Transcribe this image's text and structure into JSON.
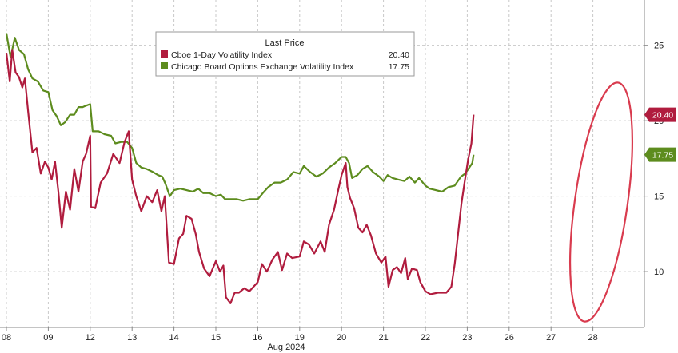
{
  "chart_data": {
    "type": "line",
    "legend": {
      "title": "Last Price",
      "placement": "top-center"
    },
    "x_categories": [
      "08",
      "09",
      "12",
      "13",
      "14",
      "15",
      "16",
      "19",
      "20",
      "21",
      "22",
      "23",
      "26",
      "27",
      "28"
    ],
    "x_axis_month": "Aug 2024",
    "y_axis": {
      "side": "right",
      "ticks": [
        10,
        15,
        20,
        25
      ],
      "ylim": [
        6.3,
        28.0
      ],
      "grid": true
    },
    "series": [
      {
        "name": "Cboe 1-Day Volatility Index",
        "last_value": "20.40",
        "color": "#b01c3e",
        "points": [
          [
            0.0,
            24.5
          ],
          [
            0.08,
            22.6
          ],
          [
            0.14,
            24.7
          ],
          [
            0.22,
            23.2
          ],
          [
            0.3,
            22.9
          ],
          [
            0.38,
            22.2
          ],
          [
            0.44,
            22.8
          ],
          [
            0.52,
            20.6
          ],
          [
            0.62,
            17.9
          ],
          [
            0.72,
            18.2
          ],
          [
            0.82,
            16.5
          ],
          [
            0.92,
            17.3
          ],
          [
            1.0,
            16.9
          ],
          [
            1.08,
            16.1
          ],
          [
            1.16,
            17.3
          ],
          [
            1.24,
            15.3
          ],
          [
            1.32,
            12.9
          ],
          [
            1.42,
            15.3
          ],
          [
            1.52,
            14.1
          ],
          [
            1.62,
            16.8
          ],
          [
            1.72,
            15.3
          ],
          [
            1.82,
            17.3
          ],
          [
            1.9,
            17.8
          ],
          [
            1.95,
            18.4
          ],
          [
            2.0,
            19.0
          ],
          [
            2.02,
            14.3
          ],
          [
            2.12,
            14.2
          ],
          [
            2.25,
            15.9
          ],
          [
            2.4,
            16.5
          ],
          [
            2.55,
            17.8
          ],
          [
            2.7,
            17.2
          ],
          [
            2.82,
            18.6
          ],
          [
            2.92,
            19.3
          ],
          [
            3.0,
            16.1
          ],
          [
            3.1,
            15.0
          ],
          [
            3.22,
            14.0
          ],
          [
            3.35,
            15.0
          ],
          [
            3.48,
            14.6
          ],
          [
            3.6,
            15.4
          ],
          [
            3.7,
            14.0
          ],
          [
            3.78,
            15.0
          ],
          [
            3.88,
            10.6
          ],
          [
            4.0,
            10.5
          ],
          [
            4.12,
            12.2
          ],
          [
            4.22,
            12.5
          ],
          [
            4.3,
            13.7
          ],
          [
            4.42,
            13.5
          ],
          [
            4.52,
            12.5
          ],
          [
            4.6,
            11.3
          ],
          [
            4.72,
            10.2
          ],
          [
            4.85,
            9.7
          ],
          [
            5.0,
            10.7
          ],
          [
            5.1,
            10.0
          ],
          [
            5.18,
            10.4
          ],
          [
            5.24,
            8.3
          ],
          [
            5.35,
            7.9
          ],
          [
            5.45,
            8.6
          ],
          [
            5.55,
            8.6
          ],
          [
            5.68,
            8.9
          ],
          [
            5.8,
            8.7
          ],
          [
            6.0,
            9.3
          ],
          [
            6.1,
            10.5
          ],
          [
            6.22,
            10.0
          ],
          [
            6.35,
            10.8
          ],
          [
            6.48,
            11.3
          ],
          [
            6.58,
            10.1
          ],
          [
            6.7,
            11.2
          ],
          [
            6.82,
            10.9
          ],
          [
            7.0,
            11.0
          ],
          [
            7.1,
            12.0
          ],
          [
            7.22,
            11.8
          ],
          [
            7.35,
            11.2
          ],
          [
            7.5,
            12.0
          ],
          [
            7.6,
            11.3
          ],
          [
            7.7,
            13.1
          ],
          [
            7.82,
            14.1
          ],
          [
            7.92,
            15.4
          ],
          [
            8.0,
            16.4
          ],
          [
            8.1,
            17.2
          ],
          [
            8.14,
            15.6
          ],
          [
            8.2,
            14.9
          ],
          [
            8.3,
            14.2
          ],
          [
            8.4,
            12.9
          ],
          [
            8.5,
            12.6
          ],
          [
            8.6,
            13.1
          ],
          [
            8.7,
            12.4
          ],
          [
            8.82,
            11.2
          ],
          [
            8.95,
            10.6
          ],
          [
            9.05,
            11.0
          ],
          [
            9.12,
            9.0
          ],
          [
            9.22,
            10.1
          ],
          [
            9.32,
            10.3
          ],
          [
            9.42,
            9.9
          ],
          [
            9.52,
            10.9
          ],
          [
            9.58,
            9.5
          ],
          [
            9.68,
            10.2
          ],
          [
            9.8,
            10.1
          ],
          [
            9.88,
            9.3
          ],
          [
            10.0,
            8.7
          ],
          [
            10.12,
            8.5
          ],
          [
            10.3,
            8.6
          ],
          [
            10.5,
            8.6
          ],
          [
            10.62,
            9.0
          ],
          [
            10.7,
            10.5
          ],
          [
            10.78,
            12.5
          ],
          [
            10.86,
            14.5
          ],
          [
            10.94,
            16.0
          ],
          [
            11.02,
            17.4
          ],
          [
            11.1,
            18.5
          ],
          [
            11.15,
            20.4
          ]
        ]
      },
      {
        "name": "Chicago Board Options Exchange Volatility Index",
        "last_value": "17.75",
        "color": "#5d8c1e",
        "points": [
          [
            0.0,
            25.8
          ],
          [
            0.1,
            24.2
          ],
          [
            0.2,
            25.5
          ],
          [
            0.3,
            24.7
          ],
          [
            0.42,
            24.4
          ],
          [
            0.52,
            23.4
          ],
          [
            0.62,
            22.8
          ],
          [
            0.75,
            22.6
          ],
          [
            0.88,
            22.0
          ],
          [
            1.0,
            21.9
          ],
          [
            1.1,
            20.7
          ],
          [
            1.2,
            20.3
          ],
          [
            1.3,
            19.7
          ],
          [
            1.4,
            19.9
          ],
          [
            1.52,
            20.4
          ],
          [
            1.62,
            20.4
          ],
          [
            1.72,
            20.9
          ],
          [
            1.82,
            20.9
          ],
          [
            1.9,
            21.0
          ],
          [
            2.0,
            21.1
          ],
          [
            2.06,
            19.3
          ],
          [
            2.2,
            19.3
          ],
          [
            2.35,
            19.1
          ],
          [
            2.5,
            19.0
          ],
          [
            2.6,
            18.5
          ],
          [
            2.75,
            18.6
          ],
          [
            2.88,
            18.6
          ],
          [
            3.0,
            18.2
          ],
          [
            3.1,
            17.2
          ],
          [
            3.22,
            16.9
          ],
          [
            3.35,
            16.8
          ],
          [
            3.5,
            16.6
          ],
          [
            3.62,
            16.4
          ],
          [
            3.72,
            16.3
          ],
          [
            3.8,
            15.8
          ],
          [
            3.9,
            15.0
          ],
          [
            4.0,
            15.4
          ],
          [
            4.15,
            15.5
          ],
          [
            4.3,
            15.4
          ],
          [
            4.45,
            15.3
          ],
          [
            4.58,
            15.5
          ],
          [
            4.7,
            15.2
          ],
          [
            4.85,
            15.2
          ],
          [
            5.0,
            15.0
          ],
          [
            5.12,
            15.1
          ],
          [
            5.22,
            14.8
          ],
          [
            5.35,
            14.8
          ],
          [
            5.5,
            14.8
          ],
          [
            5.65,
            14.7
          ],
          [
            5.8,
            14.8
          ],
          [
            6.0,
            14.8
          ],
          [
            6.12,
            15.2
          ],
          [
            6.25,
            15.6
          ],
          [
            6.4,
            15.9
          ],
          [
            6.55,
            15.9
          ],
          [
            6.7,
            16.1
          ],
          [
            6.85,
            16.6
          ],
          [
            7.0,
            16.5
          ],
          [
            7.1,
            17.0
          ],
          [
            7.25,
            16.6
          ],
          [
            7.4,
            16.3
          ],
          [
            7.55,
            16.5
          ],
          [
            7.7,
            16.9
          ],
          [
            7.85,
            17.2
          ],
          [
            8.0,
            17.6
          ],
          [
            8.1,
            17.6
          ],
          [
            8.18,
            17.2
          ],
          [
            8.25,
            16.2
          ],
          [
            8.38,
            16.4
          ],
          [
            8.5,
            16.8
          ],
          [
            8.62,
            17.0
          ],
          [
            8.75,
            16.6
          ],
          [
            8.9,
            16.3
          ],
          [
            9.0,
            16.0
          ],
          [
            9.1,
            16.4
          ],
          [
            9.22,
            16.2
          ],
          [
            9.35,
            16.1
          ],
          [
            9.5,
            16.0
          ],
          [
            9.62,
            16.3
          ],
          [
            9.75,
            15.9
          ],
          [
            9.85,
            16.2
          ],
          [
            10.0,
            15.7
          ],
          [
            10.1,
            15.5
          ],
          [
            10.25,
            15.4
          ],
          [
            10.4,
            15.3
          ],
          [
            10.55,
            15.6
          ],
          [
            10.7,
            15.7
          ],
          [
            10.85,
            16.3
          ],
          [
            10.95,
            16.5
          ],
          [
            11.05,
            16.9
          ],
          [
            11.12,
            17.2
          ],
          [
            11.15,
            17.75
          ]
        ]
      }
    ]
  }
}
